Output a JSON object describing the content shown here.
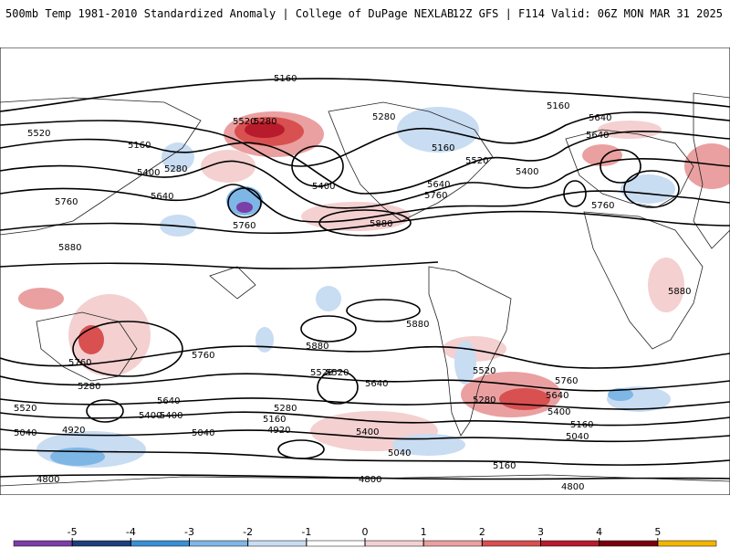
{
  "header": {
    "title_left": "500mb Temp 1981-2010 Standardized Anomaly | College of DuPage NEXLAB",
    "title_right": "12Z GFS | F114 Valid: 06Z MON MAR 31 2025"
  },
  "contour_labels": [
    "5160",
    "5280",
    "5520",
    "5160",
    "5400",
    "5640",
    "5280",
    "5400",
    "5520",
    "5760",
    "5760",
    "5880",
    "5880",
    "5880",
    "5880",
    "5280",
    "5160",
    "5520",
    "5400",
    "5640",
    "5640",
    "5760",
    "5160",
    "5640",
    "5760",
    "5880",
    "5760",
    "5760",
    "5520",
    "5640",
    "5280",
    "5520",
    "5520",
    "5640",
    "5400",
    "5280",
    "5160",
    "5040",
    "4920",
    "5040",
    "5400",
    "5040",
    "4920",
    "5280",
    "5160",
    "5400",
    "5640",
    "5760",
    "5160",
    "5040",
    "4800",
    "4800",
    "4800",
    "5400",
    "5520"
  ],
  "colorbar": {
    "ticks": [
      "-5",
      "-4",
      "-3",
      "-2",
      "-1",
      "0",
      "1",
      "2",
      "3",
      "4",
      "5"
    ],
    "colors": [
      "#7b3fa8",
      "#1f3f7a",
      "#3a8fd6",
      "#7eb6e6",
      "#c8dcf2",
      "#ffffff",
      "#f4d0d0",
      "#eaa0a0",
      "#d85050",
      "#b81c2c",
      "#7a0010",
      "#f2b500"
    ]
  }
}
